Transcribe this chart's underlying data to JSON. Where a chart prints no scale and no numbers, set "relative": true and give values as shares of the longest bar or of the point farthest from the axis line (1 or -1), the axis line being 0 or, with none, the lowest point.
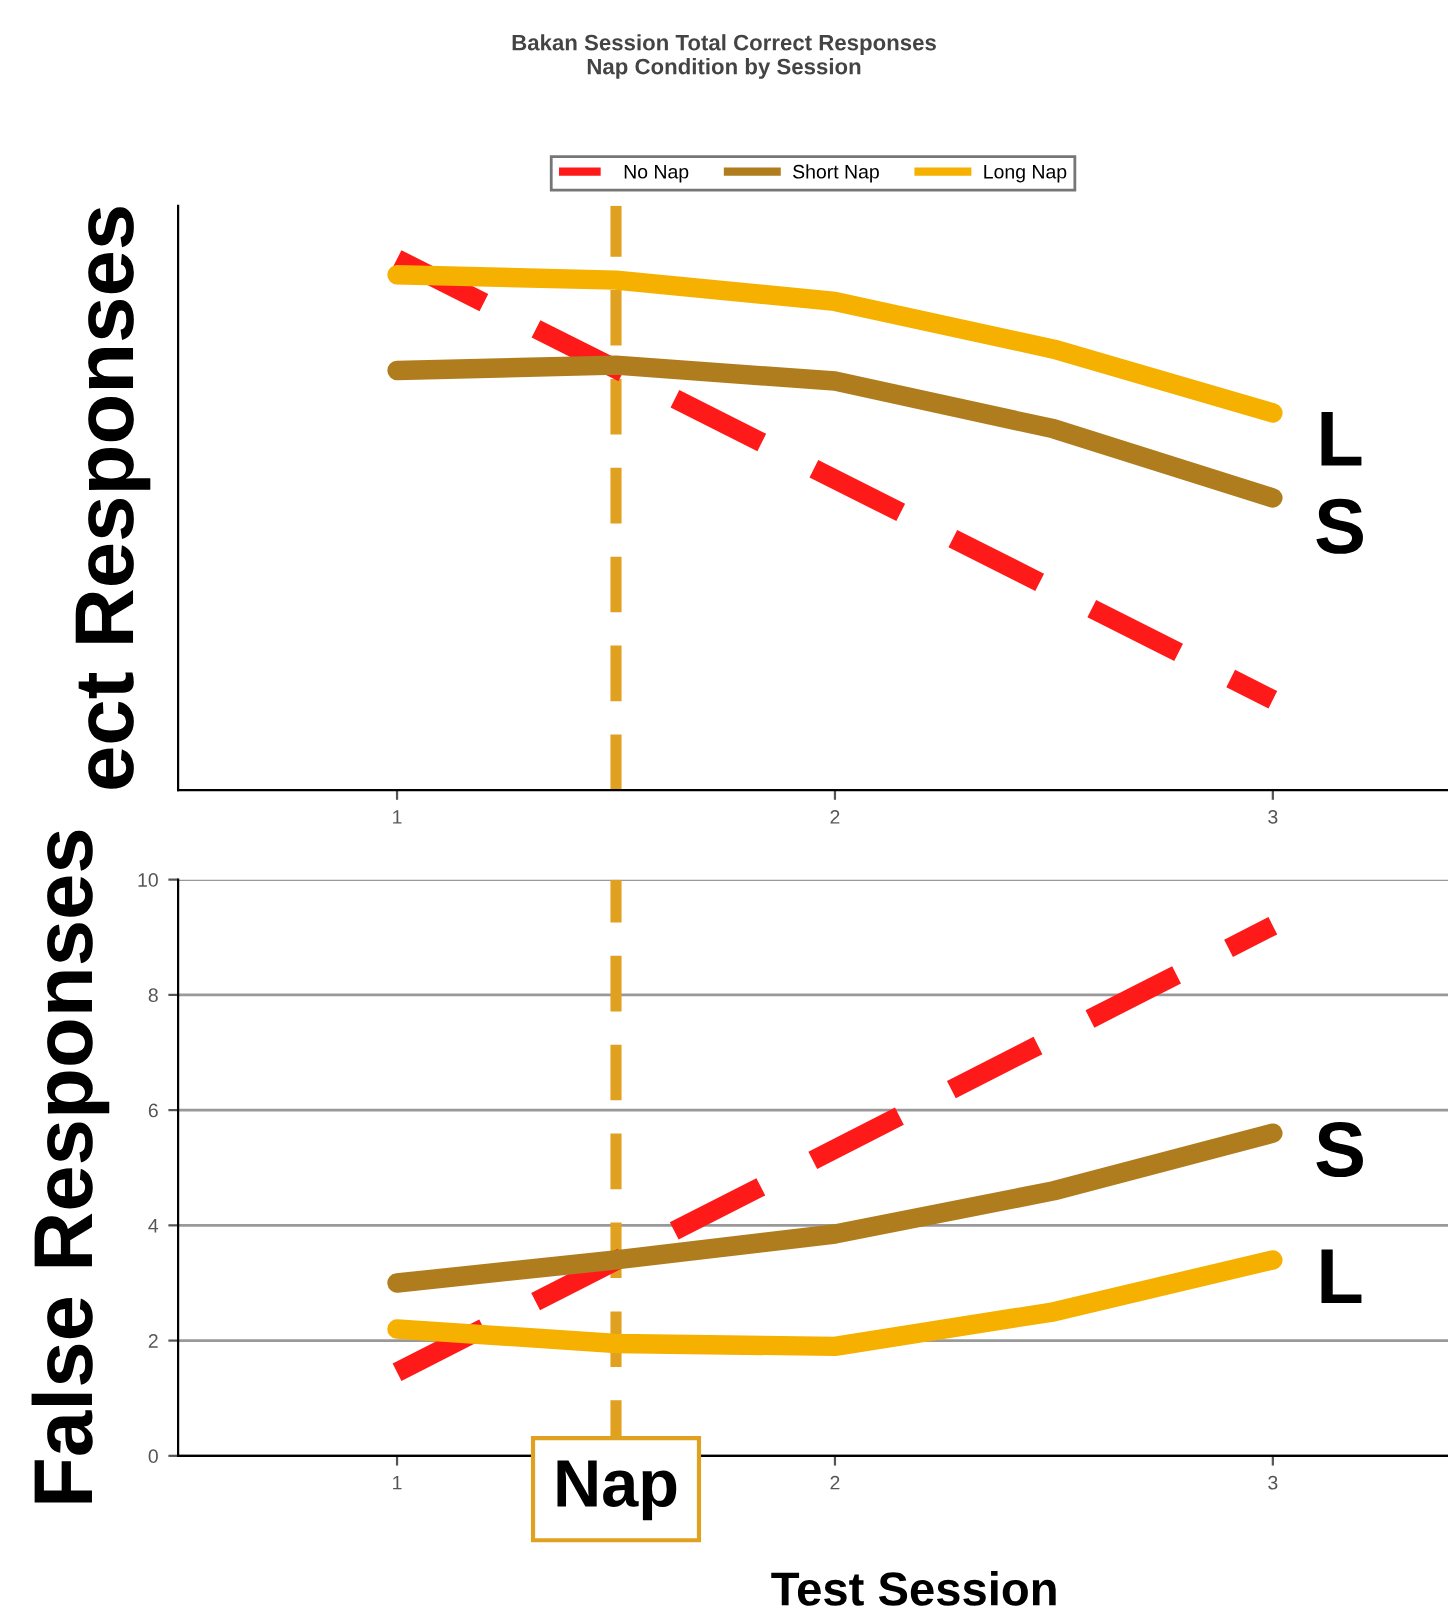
{
  "chart_data": [
    {
      "type": "line",
      "title": "Bakan Session Total Correct Responses\nNap Condition by Session",
      "ylabel": "ect Responses",
      "relative": true,
      "xlim": [
        0.5,
        3.4
      ],
      "xticks": [
        1,
        2,
        3
      ],
      "legend": "top",
      "marker": "none",
      "series": [
        {
          "name": "No Nap",
          "color": "#ff1a1a",
          "line_style": "dashed",
          "x": [
            1,
            3
          ],
          "values": [
            1.0,
            0.17
          ]
        },
        {
          "name": "Short Nap",
          "color": "#b07d1e",
          "line_style": "solid",
          "x": [
            1,
            1.5,
            2,
            2.5,
            3
          ],
          "values": [
            0.79,
            0.8,
            0.77,
            0.68,
            0.55
          ]
        },
        {
          "name": "Long Nap",
          "color": "#f5b000",
          "line_style": "solid",
          "x": [
            1,
            1.5,
            2,
            2.5,
            3
          ],
          "values": [
            0.97,
            0.96,
            0.92,
            0.83,
            0.71
          ]
        }
      ],
      "ref_lines": [
        {
          "axis": "x",
          "value": 1.5,
          "color": "#e0a020",
          "line_style": "dashed"
        }
      ],
      "annotations": [
        "L",
        "S"
      ]
    },
    {
      "type": "line",
      "ylabel": "False Responses",
      "xlabel": "Test Session",
      "xlim": [
        0.5,
        3.4
      ],
      "xticks": [
        1,
        2,
        3
      ],
      "ylim": [
        0,
        10
      ],
      "yticks": [
        0,
        2,
        4,
        6,
        8,
        10
      ],
      "grid": "y",
      "marker": "none",
      "series": [
        {
          "color": "#ff1a1a",
          "line_style": "dashed",
          "x": [
            1,
            3
          ],
          "values": [
            1.45,
            9.2
          ]
        },
        {
          "color": "#b07d1e",
          "line_style": "solid",
          "x": [
            1,
            1.5,
            2,
            2.5,
            3
          ],
          "values": [
            3.0,
            3.4,
            3.85,
            4.6,
            5.6
          ]
        },
        {
          "color": "#f5b000",
          "line_style": "solid",
          "x": [
            1,
            1.5,
            2,
            2.5,
            3
          ],
          "values": [
            2.2,
            1.95,
            1.9,
            2.5,
            3.4
          ]
        }
      ],
      "ref_lines": [
        {
          "axis": "x",
          "value": 1.5,
          "label": "Nap",
          "color": "#e0a020",
          "line_style": "dashed"
        }
      ],
      "annotations": [
        "S",
        "L"
      ]
    }
  ]
}
